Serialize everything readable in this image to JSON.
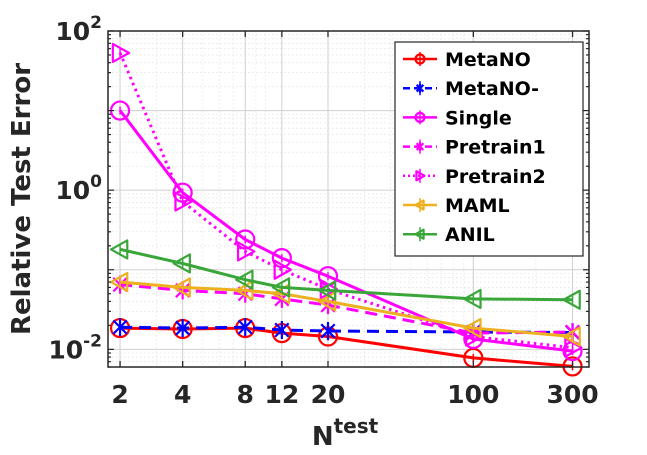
{
  "chart_data": {
    "type": "line",
    "xscale": "log",
    "yscale": "log",
    "title": "",
    "xlabel": {
      "base": "N",
      "superscript": "test"
    },
    "ylabel": "Relative Test Error",
    "xlim": [
      1.75,
      360
    ],
    "ylim": [
      0.006,
      100
    ],
    "x": [
      2,
      4,
      8,
      12,
      20,
      100,
      300
    ],
    "x_tick_labels": [
      "2",
      "4",
      "8",
      "12",
      "20",
      "100",
      "300"
    ],
    "y_ticks": [
      {
        "value": 100,
        "base": "10",
        "exp": "2"
      },
      {
        "value": 1,
        "base": "10",
        "exp": "0"
      },
      {
        "value": 0.01,
        "base": "10",
        "exp": "-2"
      }
    ],
    "grid": true,
    "legend_position": "top-right",
    "series": [
      {
        "name": "MetaNO",
        "color": "#ff0000",
        "line": "solid",
        "marker": "circle",
        "x": [
          2,
          4,
          8,
          12,
          20,
          100,
          300
        ],
        "values": [
          0.0185,
          0.018,
          0.0185,
          0.016,
          0.0145,
          0.0078,
          0.0061
        ]
      },
      {
        "name": "MetaNO-",
        "color": "#0000ff",
        "line": "dashed",
        "marker": "star",
        "x": [
          2,
          4,
          8,
          12,
          20,
          100,
          300
        ],
        "values": [
          0.019,
          0.0185,
          0.019,
          0.0175,
          0.017,
          0.0165,
          0.0163
        ]
      },
      {
        "name": "Single",
        "color": "#ff00ff",
        "line": "solid",
        "marker": "circle",
        "x": [
          2,
          4,
          8,
          12,
          20,
          100,
          300
        ],
        "values": [
          10,
          0.93,
          0.24,
          0.14,
          0.083,
          0.0135,
          0.0095
        ]
      },
      {
        "name": "Pretrain1",
        "color": "#ff00ff",
        "line": "dashed",
        "marker": "star",
        "x": [
          2,
          4,
          8,
          12,
          20,
          100,
          300
        ],
        "values": [
          0.065,
          0.055,
          0.05,
          0.043,
          0.036,
          0.016,
          0.0165
        ]
      },
      {
        "name": "Pretrain2",
        "color": "#ff00ff",
        "line": "dotted",
        "marker": "triangle-right",
        "x": [
          2,
          4,
          8,
          12,
          20,
          100,
          300
        ],
        "values": [
          53,
          0.72,
          0.17,
          0.1,
          0.057,
          0.0145,
          0.0105
        ]
      },
      {
        "name": "MAML",
        "color": "#edb120",
        "line": "solid",
        "marker": "triangle-left",
        "x": [
          2,
          4,
          8,
          12,
          20,
          100,
          300
        ],
        "values": [
          0.07,
          0.06,
          0.055,
          0.05,
          0.04,
          0.0185,
          0.0145
        ]
      },
      {
        "name": "ANIL",
        "color": "#3aa63a",
        "line": "solid",
        "marker": "triangle-left",
        "x": [
          2,
          4,
          8,
          12,
          20,
          100,
          300
        ],
        "values": [
          0.18,
          0.12,
          0.075,
          0.06,
          0.055,
          0.043,
          0.042
        ]
      }
    ]
  }
}
